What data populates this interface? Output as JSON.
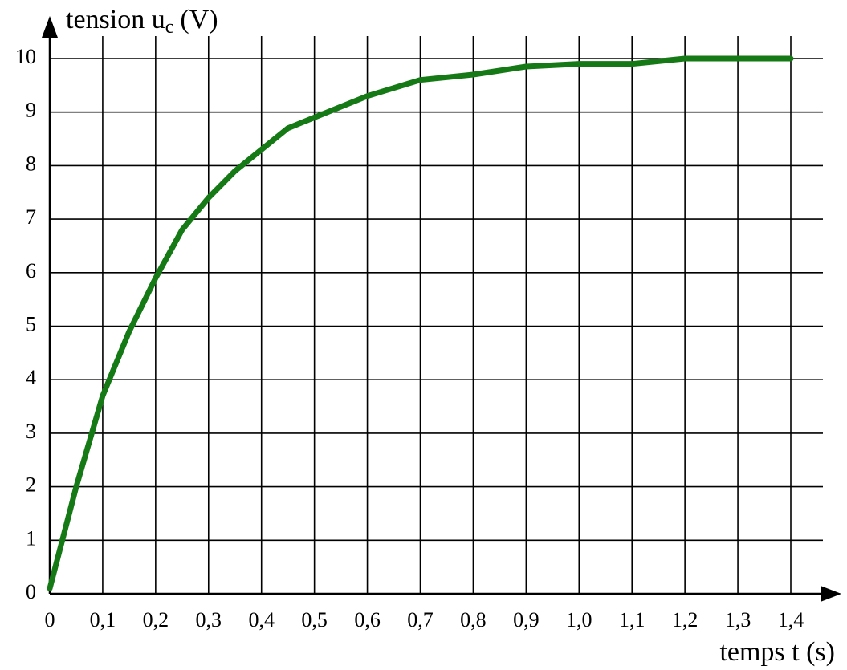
{
  "chart_data": {
    "type": "line",
    "ylabel": {
      "text": "tension u",
      "subscript": "c",
      "unit": "(V)"
    },
    "xlabel": "temps t (s)",
    "x": [
      0,
      0.05,
      0.1,
      0.15,
      0.2,
      0.25,
      0.3,
      0.35,
      0.4,
      0.45,
      0.5,
      0.55,
      0.6,
      0.65,
      0.7,
      0.8,
      0.9,
      1.0,
      1.1,
      1.2,
      1.3,
      1.4
    ],
    "series": [
      {
        "name": "u_c",
        "color": "#157a15",
        "values": [
          0.1,
          2.0,
          3.7,
          4.9,
          5.9,
          6.8,
          7.4,
          7.9,
          8.3,
          8.7,
          8.9,
          9.1,
          9.3,
          9.45,
          9.6,
          9.7,
          9.85,
          9.9,
          9.9,
          10,
          10,
          10
        ]
      }
    ],
    "xlim": [
      0,
      1.4
    ],
    "ylim": [
      0,
      10
    ],
    "xticks": [
      0,
      {
        "value": 0.1,
        "label": "0,1"
      },
      {
        "value": 0.2,
        "label": "0,2"
      },
      {
        "value": 0.3,
        "label": "0,3"
      },
      {
        "value": 0.4,
        "label": "0,4"
      },
      {
        "value": 0.5,
        "label": "0,5"
      },
      {
        "value": 0.6,
        "label": "0,6"
      },
      {
        "value": 0.7,
        "label": "0,7"
      },
      {
        "value": 0.8,
        "label": "0,8"
      },
      {
        "value": 0.9,
        "label": "0,9"
      },
      {
        "value": 1.0,
        "label": "1,0"
      },
      {
        "value": 1.1,
        "label": "1,1"
      },
      {
        "value": 1.2,
        "label": "1,2"
      },
      {
        "value": 1.3,
        "label": "1,3"
      },
      {
        "value": 1.4,
        "label": "1,4"
      }
    ],
    "yticks": [
      0,
      1,
      2,
      3,
      4,
      5,
      6,
      7,
      8,
      9,
      10
    ],
    "grid": true
  }
}
